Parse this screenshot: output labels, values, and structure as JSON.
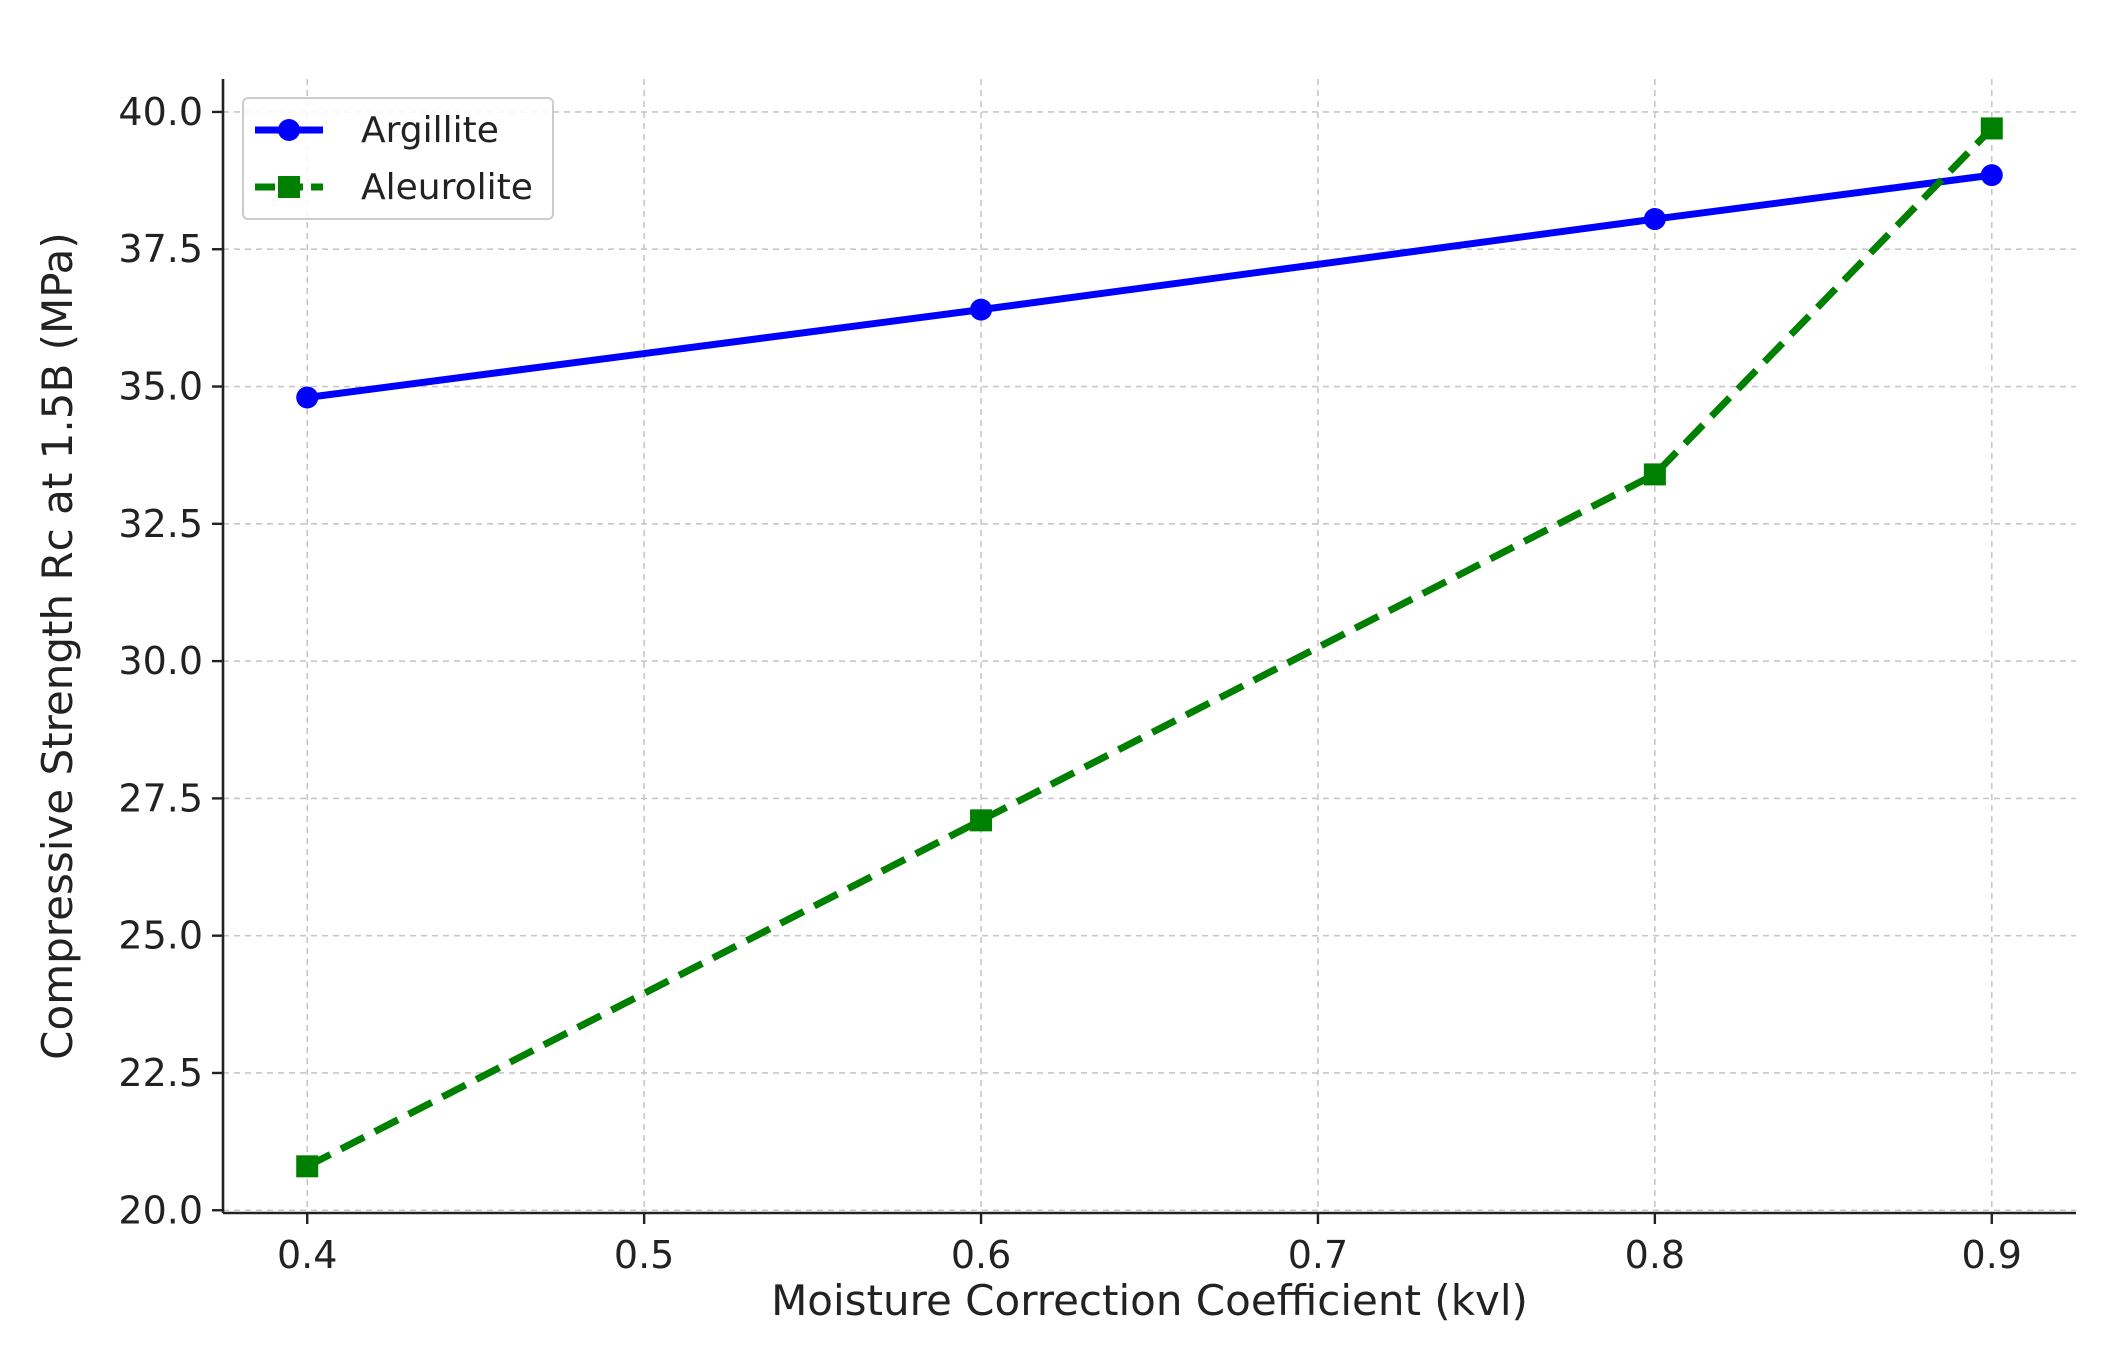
{
  "chart_data": {
    "type": "line",
    "title": "",
    "xlabel": "Moisture Correction Coefficient (kvl)",
    "ylabel": "Compressive Strength Rc at 1.5B (MPa)",
    "xlim": [
      0.375,
      0.925
    ],
    "ylim": [
      19.95,
      40.6
    ],
    "xticks": [
      0.4,
      0.5,
      0.6,
      0.7,
      0.8,
      0.9
    ],
    "xtick_labels": [
      "0.4",
      "0.5",
      "0.6",
      "0.7",
      "0.8",
      "0.9"
    ],
    "yticks": [
      20.0,
      22.5,
      25.0,
      27.5,
      30.0,
      32.5,
      35.0,
      37.5,
      40.0
    ],
    "ytick_labels": [
      "20.0",
      "22.5",
      "25.0",
      "27.5",
      "30.0",
      "32.5",
      "35.0",
      "37.5",
      "40.0"
    ],
    "grid": true,
    "legend_position": "top-left",
    "series": [
      {
        "name": "Argillite",
        "color": "#0000ff",
        "line_style": "solid",
        "marker": "circle",
        "x": [
          0.4,
          0.6,
          0.8,
          0.9
        ],
        "y": [
          34.8,
          36.4,
          38.05,
          38.85
        ]
      },
      {
        "name": "Aleurolite",
        "color": "#008000",
        "line_style": "dashed",
        "marker": "square",
        "x": [
          0.4,
          0.6,
          0.8,
          0.9
        ],
        "y": [
          20.8,
          27.1,
          33.4,
          39.7
        ]
      }
    ]
  }
}
